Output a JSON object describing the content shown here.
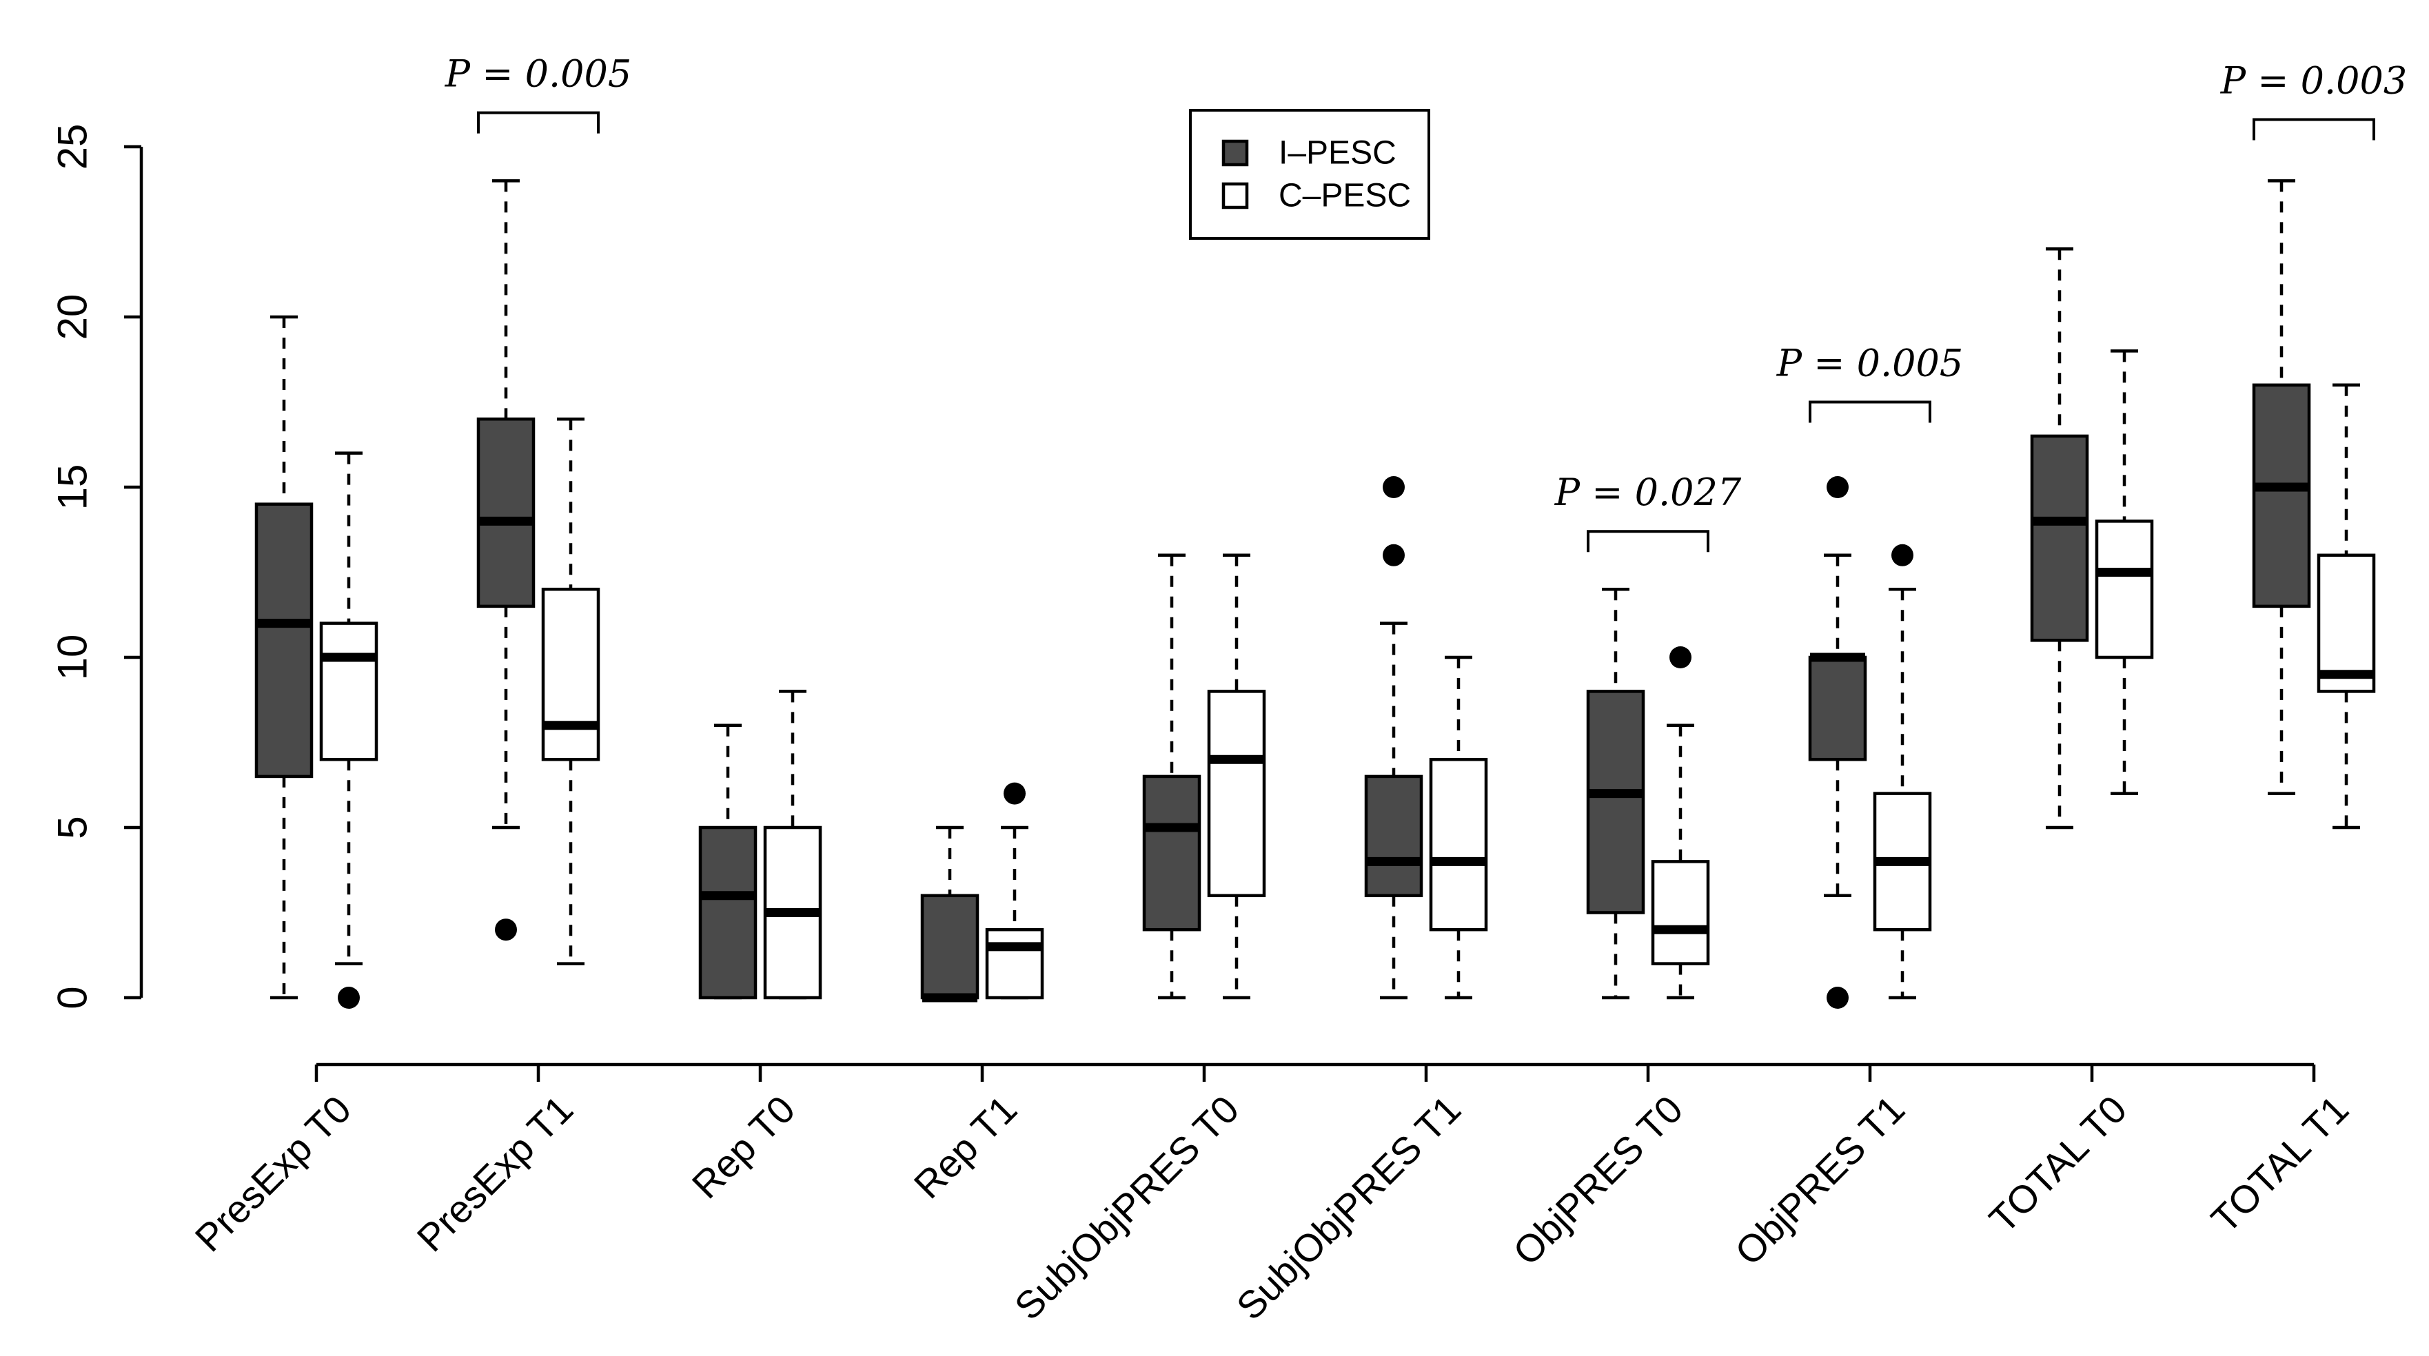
{
  "chart_data": {
    "type": "box",
    "title": "",
    "xlabel": "",
    "ylabel": "",
    "ylim": [
      0,
      25
    ],
    "yticks": [
      0,
      5,
      10,
      15,
      20,
      25
    ],
    "categories": [
      "PresExp T0",
      "PresExp T1",
      "Rep T0",
      "Rep T1",
      "SubjObjPRES T0",
      "SubjObjPRES T1",
      "ObjPRES T0",
      "ObjPRES T1",
      "TOTAL T0",
      "TOTAL T1"
    ],
    "legend": {
      "position": "top-center",
      "entries": [
        "I–PESC",
        "C–PESC"
      ]
    },
    "series": [
      {
        "name": "I–PESC",
        "color": "#4a4a4a",
        "boxes": [
          {
            "min": 0,
            "q1": 6.5,
            "median": 11,
            "q3": 14.5,
            "max": 20,
            "outliers": []
          },
          {
            "min": 5,
            "q1": 11.5,
            "median": 14,
            "q3": 17,
            "max": 24,
            "outliers": [
              2
            ]
          },
          {
            "min": 0,
            "q1": 0,
            "median": 3,
            "q3": 5,
            "max": 8,
            "outliers": []
          },
          {
            "min": 0,
            "q1": 0,
            "median": 0,
            "q3": 3,
            "max": 5,
            "outliers": []
          },
          {
            "min": 0,
            "q1": 2,
            "median": 5,
            "q3": 6.5,
            "max": 13,
            "outliers": []
          },
          {
            "min": 0,
            "q1": 3,
            "median": 4,
            "q3": 6.5,
            "max": 11,
            "outliers": [
              13,
              15
            ]
          },
          {
            "min": 0,
            "q1": 2.5,
            "median": 6,
            "q3": 9,
            "max": 12,
            "outliers": []
          },
          {
            "min": 3,
            "q1": 7,
            "median": 10,
            "q3": 10,
            "max": 13,
            "outliers": [
              0,
              15
            ]
          },
          {
            "min": 5,
            "q1": 10.5,
            "median": 14,
            "q3": 16.5,
            "max": 22,
            "outliers": []
          },
          {
            "min": 6,
            "q1": 11.5,
            "median": 15,
            "q3": 18,
            "max": 24,
            "outliers": []
          }
        ]
      },
      {
        "name": "C–PESC",
        "color": "#ffffff",
        "boxes": [
          {
            "min": 1,
            "q1": 7,
            "median": 10,
            "q3": 11,
            "max": 16,
            "outliers": [
              0
            ]
          },
          {
            "min": 1,
            "q1": 7,
            "median": 8,
            "q3": 12,
            "max": 17,
            "outliers": []
          },
          {
            "min": 0,
            "q1": 0,
            "median": 2.5,
            "q3": 5,
            "max": 9,
            "outliers": []
          },
          {
            "min": 0,
            "q1": 0,
            "median": 1.5,
            "q3": 2,
            "max": 5,
            "outliers": [
              6
            ]
          },
          {
            "min": 0,
            "q1": 3,
            "median": 7,
            "q3": 9,
            "max": 13,
            "outliers": []
          },
          {
            "min": 0,
            "q1": 2,
            "median": 4,
            "q3": 7,
            "max": 10,
            "outliers": []
          },
          {
            "min": 0,
            "q1": 1,
            "median": 2,
            "q3": 4,
            "max": 8,
            "outliers": [
              10
            ]
          },
          {
            "min": 0,
            "q1": 2,
            "median": 4,
            "q3": 6,
            "max": 12,
            "outliers": [
              13
            ]
          },
          {
            "min": 6,
            "q1": 10,
            "median": 12.5,
            "q3": 14,
            "max": 19,
            "outliers": []
          },
          {
            "min": 5,
            "q1": 9,
            "median": 9.5,
            "q3": 13,
            "max": 18,
            "outliers": []
          }
        ]
      }
    ],
    "annotations": [
      {
        "category_index": 1,
        "text": "P = 0.005",
        "level": 26
      },
      {
        "category_index": 6,
        "text": "P = 0.027",
        "level": 13.7
      },
      {
        "category_index": 7,
        "text": "P = 0.005",
        "level": 17.5
      },
      {
        "category_index": 9,
        "text": "P = 0.003",
        "level": 25.8
      }
    ]
  }
}
